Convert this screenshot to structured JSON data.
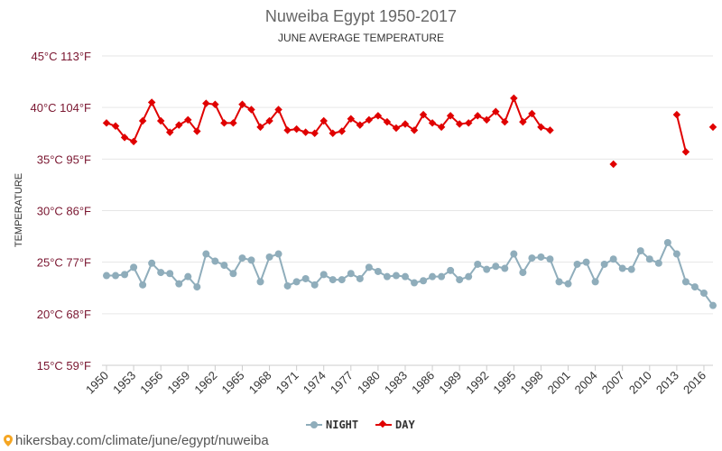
{
  "colors": {
    "night": "#8fadbb",
    "day": "#e00000",
    "ytick": "#7a1630",
    "grid": "#e6e6e6",
    "axis": "#cccccc"
  },
  "watermark": "hikersbay.com/climate/june/egypt/nuweiba",
  "chart_data": {
    "type": "line",
    "title": "Nuweiba Egypt 1950-2017",
    "subtitle": "JUNE AVERAGE TEMPERATURE",
    "ylabel": "TEMPERATURE",
    "xlabel": "",
    "ylim": [
      15,
      45
    ],
    "xlim": [
      1949.5,
      2017
    ],
    "grid": true,
    "legend_position": "bottom-center",
    "ytick_values": [
      15,
      20,
      25,
      30,
      35,
      40,
      45
    ],
    "yticks": [
      "15°C 59°F",
      "20°C 68°F",
      "25°C 77°F",
      "30°C 86°F",
      "35°C 95°F",
      "40°C 104°F",
      "45°C 113°F"
    ],
    "xticks": [
      "1950",
      "1953",
      "1956",
      "1959",
      "1962",
      "1965",
      "1968",
      "1971",
      "1974",
      "1977",
      "1980",
      "1983",
      "1986",
      "1989",
      "1992",
      "1995",
      "1998",
      "2001",
      "2004",
      "2007",
      "2010",
      "2013",
      "2016"
    ],
    "x": [
      1950,
      1951,
      1952,
      1953,
      1954,
      1955,
      1956,
      1957,
      1958,
      1959,
      1960,
      1961,
      1962,
      1963,
      1964,
      1965,
      1966,
      1967,
      1968,
      1969,
      1970,
      1971,
      1972,
      1973,
      1974,
      1975,
      1976,
      1977,
      1978,
      1979,
      1980,
      1981,
      1982,
      1983,
      1984,
      1985,
      1986,
      1987,
      1988,
      1989,
      1990,
      1991,
      1992,
      1993,
      1994,
      1995,
      1996,
      1997,
      1998,
      1999,
      2000,
      2001,
      2002,
      2003,
      2004,
      2005,
      2006,
      2007,
      2008,
      2009,
      2010,
      2011,
      2012,
      2013,
      2014,
      2015,
      2016,
      2017
    ],
    "series": [
      {
        "name": "NIGHT",
        "color": "#8fadbb",
        "values": [
          23.7,
          23.7,
          23.8,
          24.5,
          22.8,
          24.9,
          24.0,
          23.9,
          22.9,
          23.6,
          22.6,
          25.8,
          25.1,
          24.7,
          23.9,
          25.4,
          25.2,
          23.1,
          25.5,
          25.8,
          22.7,
          23.1,
          23.4,
          22.8,
          23.8,
          23.3,
          23.3,
          23.9,
          23.4,
          24.5,
          24.1,
          23.6,
          23.7,
          23.6,
          23.0,
          23.2,
          23.6,
          23.6,
          24.2,
          23.3,
          23.6,
          24.8,
          24.3,
          24.6,
          24.4,
          25.8,
          24.0,
          25.4,
          25.5,
          25.3,
          23.1,
          22.9,
          24.8,
          25.0,
          23.1,
          24.8,
          25.3,
          24.4,
          24.3,
          26.1,
          25.3,
          24.9,
          26.9,
          25.8,
          23.1,
          22.6,
          22.0,
          20.8
        ]
      },
      {
        "name": "DAY",
        "color": "#e00000",
        "values": [
          38.5,
          38.2,
          37.1,
          36.7,
          38.7,
          40.5,
          38.7,
          37.6,
          38.3,
          38.8,
          37.7,
          40.4,
          40.3,
          38.5,
          38.5,
          40.3,
          39.8,
          38.1,
          38.7,
          39.8,
          37.8,
          37.9,
          37.6,
          37.5,
          38.7,
          37.5,
          37.7,
          38.9,
          38.3,
          38.8,
          39.2,
          38.6,
          38.0,
          38.4,
          37.8,
          39.3,
          38.5,
          38.1,
          39.2,
          38.4,
          38.5,
          39.2,
          38.8,
          39.6,
          38.6,
          40.9,
          38.6,
          39.4,
          38.1,
          37.8,
          null,
          null,
          null,
          null,
          null,
          null,
          34.5,
          null,
          null,
          null,
          null,
          null,
          null,
          39.3,
          35.7,
          null,
          null,
          38.1
        ]
      }
    ]
  }
}
